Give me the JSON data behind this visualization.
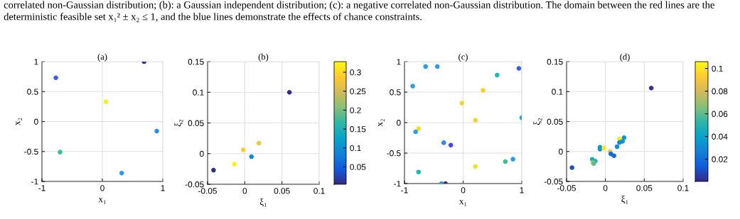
{
  "chart_data": [
    {
      "type": "scatter",
      "title": "(a)",
      "xlabel": "x₁",
      "ylabel": "x₂",
      "annotations": [
        "correlated non-Gaussian distribution; (b): a Gaussian independent distribution; (c): a negative correlated non-Gaussian distribution. The domain between the red lines are the deterministic feasible set x₁² ± x₂ ≤ 1, and the blue lines demonstrate the effects of chance constraints."
      ],
      "x": [
        -0.77,
        0.69,
        0.06,
        0.9,
        -0.7,
        0.32
      ],
      "values": [
        0.73,
        1.0,
        0.33,
        -0.16,
        -0.51,
        -0.86
      ],
      "colors": [
        "#3a5ef5",
        "#3b2a98",
        "#f5f01c",
        "#2a8cf0",
        "#2dc49a",
        "#2f9be8"
      ],
      "xlim": [
        -1,
        1
      ],
      "ylim": [
        -1,
        1
      ],
      "xticks": [
        -1,
        0,
        1
      ],
      "yticks": [
        -1,
        -0.5,
        0,
        0.5,
        1
      ],
      "grid": true,
      "marker": "circle"
    },
    {
      "type": "scatter",
      "title": "(b)",
      "xlabel": "ξ₁",
      "ylabel": "ξ₂",
      "x": [
        0.06,
        0.019,
        -0.002,
        0.009,
        -0.014,
        -0.042
      ],
      "values": [
        0.1,
        0.017,
        0.006,
        -0.005,
        -0.017,
        -0.027
      ],
      "cvalues": [
        0.005,
        0.28,
        0.29,
        0.1,
        0.32,
        0.01
      ],
      "clim": [
        0.004,
        0.328
      ],
      "cticks": [
        0.05,
        0.1,
        0.15,
        0.2,
        0.25,
        0.3
      ],
      "xlim": [
        -0.05,
        0.1
      ],
      "ylim": [
        -0.05,
        0.15
      ],
      "xticks": [
        -0.05,
        0,
        0.05,
        0.1
      ],
      "yticks": [
        -0.05,
        0,
        0.05,
        0.1,
        0.15
      ],
      "grid": true,
      "marker": "circle"
    },
    {
      "type": "scatter",
      "title": "(c)",
      "xlabel": "x₁",
      "ylabel": "x₂",
      "x": [
        -0.64,
        -0.44,
        -0.86,
        0.95,
        0.58,
        0.34,
        -0.02,
        0.21,
        1.0,
        -0.76,
        -0.81,
        -0.33,
        -0.21,
        0.85,
        0.72,
        0.21,
        -0.76,
        -0.37,
        -0.3
      ],
      "values": [
        0.92,
        0.92,
        0.6,
        0.89,
        0.78,
        0.53,
        0.32,
        0.04,
        0.08,
        -0.1,
        -0.15,
        -0.33,
        -0.37,
        -0.6,
        -0.64,
        -0.72,
        -0.81,
        -1.0,
        -1.0
      ],
      "colors": [
        "#2b9de8",
        "#2b9de8",
        "#2b9de8",
        "#3b5cf0",
        "#1fb8b8",
        "#f2d327",
        "#f2d327",
        "#f2d327",
        "#2b9de8",
        "#f0e21c",
        "#2b9de8",
        "#2f86ee",
        "#4a44e0",
        "#2b9de8",
        "#3cbf8a",
        "#f0e21c",
        "#1fb8b8",
        "#2b9de8",
        "#3b2a98"
      ],
      "xlim": [
        -1,
        1
      ],
      "ylim": [
        -1,
        1
      ],
      "xticks": [
        -1,
        0,
        1
      ],
      "yticks": [
        -1,
        -0.5,
        0,
        0.5,
        1
      ],
      "grid": true,
      "marker": "circle"
    },
    {
      "type": "scatter",
      "title": "(d)",
      "xlabel": "ξ₁",
      "ylabel": "ξ₂",
      "x": [
        0.059,
        0.018,
        0.024,
        0.022,
        0.018,
        0.015,
        -0.007,
        -0.007,
        -0.002,
        0.006,
        0.007,
        0.011,
        -0.017,
        -0.013,
        -0.016,
        -0.015,
        -0.043
      ],
      "values": [
        0.106,
        0.021,
        0.023,
        0.017,
        0.015,
        0.008,
        0.007,
        0.004,
        0.006,
        0.0,
        -0.004,
        -0.007,
        -0.013,
        -0.016,
        -0.019,
        -0.02,
        -0.027
      ],
      "cvalues": [
        0.003,
        0.1,
        0.035,
        0.035,
        0.03,
        0.03,
        0.035,
        0.035,
        0.1,
        0.09,
        0.02,
        0.02,
        0.045,
        0.05,
        0.085,
        0.06,
        0.01
      ],
      "clim": [
        0.0003,
        0.106
      ],
      "cticks": [
        0.02,
        0.04,
        0.06,
        0.08,
        0.1
      ],
      "xlim": [
        -0.05,
        0.1
      ],
      "ylim": [
        -0.05,
        0.15
      ],
      "xticks": [
        -0.05,
        0,
        0.05,
        0.1
      ],
      "yticks": [
        -0.05,
        0,
        0.05,
        0.1,
        0.15
      ],
      "grid": true,
      "marker": "circle"
    }
  ]
}
